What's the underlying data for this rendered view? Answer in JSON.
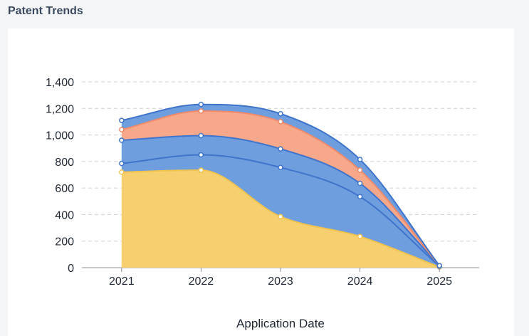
{
  "header": {
    "title": "Patent Trends"
  },
  "chart_data": {
    "type": "area",
    "stacked": true,
    "smooth": true,
    "xlabel": "Application Date",
    "ylabel": "",
    "categories": [
      "2021",
      "2022",
      "2023",
      "2024",
      "2025"
    ],
    "ylim": [
      0,
      1400
    ],
    "yticks": [
      0,
      200,
      400,
      600,
      800,
      1000,
      1200,
      1400
    ],
    "ytick_labels": [
      "0",
      "200",
      "400",
      "600",
      "800",
      "1,000",
      "1,200",
      "1,400"
    ],
    "grid": "horizontal dashed",
    "legend": "none",
    "series": [
      {
        "color": "#f6d06f",
        "line_color": "#f0c24e",
        "values": [
          720,
          735,
          385,
          235,
          5
        ]
      },
      {
        "color": "#6f9ede",
        "line_color": "#3f74cc",
        "values": [
          65,
          115,
          370,
          300,
          5
        ]
      },
      {
        "color": "#6f9ede",
        "line_color": "#3f74cc",
        "values": [
          175,
          145,
          140,
          100,
          5
        ]
      },
      {
        "color": "#f7a88a",
        "line_color": "#f08a6a",
        "values": [
          80,
          185,
          205,
          100,
          0
        ]
      },
      {
        "color": "#6f9ede",
        "line_color": "#3f74cc",
        "values": [
          70,
          50,
          60,
          80,
          0
        ]
      }
    ]
  }
}
